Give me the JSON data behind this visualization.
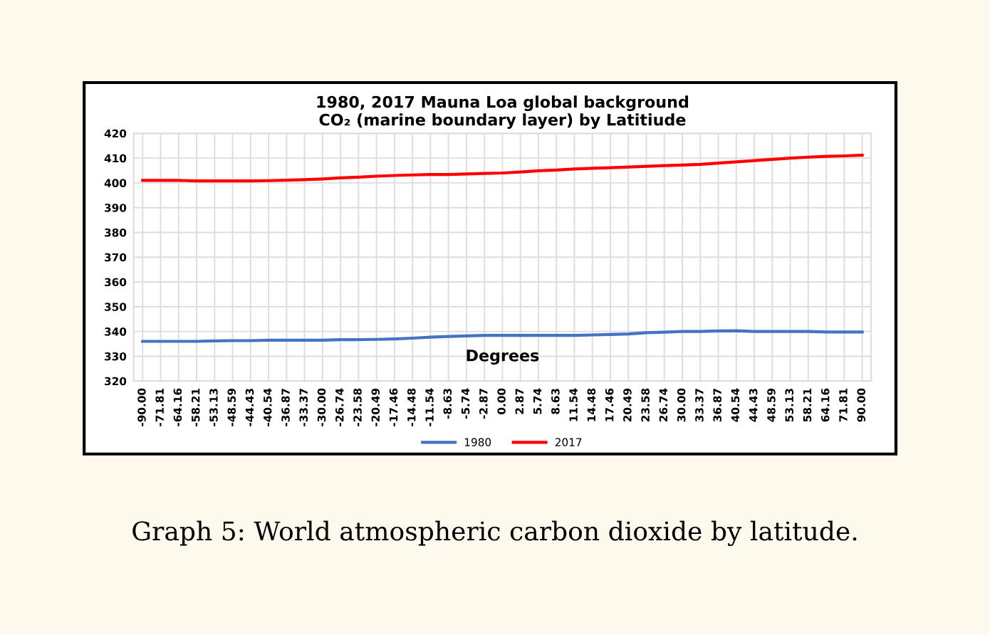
{
  "chart_data": {
    "type": "line",
    "title": "1980, 2017 Mauna Loa global background\nCO₂ (marine boundary layer) by Latitiude",
    "xlabel": "Degrees",
    "categories": [
      "-90.00",
      "-71.81",
      "-64.16",
      "-58.21",
      "-53.13",
      "-48.59",
      "-44.43",
      "-40.54",
      "-36.87",
      "-33.37",
      "-30.00",
      "-26.74",
      "-23.58",
      "-20.49",
      "-17.46",
      "-14.48",
      "-11.54",
      "-8.63",
      "-5.74",
      "-2.87",
      "0.00",
      "2.87",
      "5.74",
      "8.63",
      "11.54",
      "14.48",
      "17.46",
      "20.49",
      "23.58",
      "26.74",
      "30.00",
      "33.37",
      "36.87",
      "40.54",
      "44.43",
      "48.59",
      "53.13",
      "58.21",
      "64.16",
      "71.81",
      "90.00"
    ],
    "series": [
      {
        "name": "1980",
        "color": "#4472c4",
        "values": [
          336.0,
          336.0,
          336.0,
          336.0,
          336.2,
          336.3,
          336.3,
          336.5,
          336.5,
          336.5,
          336.5,
          336.7,
          336.7,
          336.8,
          337.0,
          337.3,
          337.7,
          338.0,
          338.2,
          338.4,
          338.4,
          338.4,
          338.4,
          338.4,
          338.4,
          338.6,
          338.8,
          339.0,
          339.5,
          339.7,
          340.0,
          340.0,
          340.2,
          340.3,
          340.0,
          340.0,
          340.0,
          340.0,
          339.8,
          339.8,
          339.8
        ]
      },
      {
        "name": "2017",
        "color": "#ff0000",
        "values": [
          401.0,
          401.0,
          401.0,
          400.8,
          400.8,
          400.8,
          400.8,
          400.9,
          401.1,
          401.3,
          401.6,
          402.0,
          402.3,
          402.7,
          403.0,
          403.2,
          403.4,
          403.4,
          403.6,
          403.8,
          404.0,
          404.4,
          404.9,
          405.2,
          405.6,
          405.9,
          406.1,
          406.4,
          406.7,
          407.0,
          407.2,
          407.5,
          408.0,
          408.5,
          409.0,
          409.5,
          410.0,
          410.4,
          410.7,
          410.9,
          411.2
        ]
      }
    ],
    "ylim": [
      320,
      420
    ],
    "yticks": [
      320,
      330,
      340,
      350,
      360,
      370,
      380,
      390,
      400,
      410,
      420
    ],
    "grid": true,
    "legend": "bottom",
    "annotations": [
      "Graph 5: World atmospheric carbon dioxide by latitude."
    ]
  }
}
